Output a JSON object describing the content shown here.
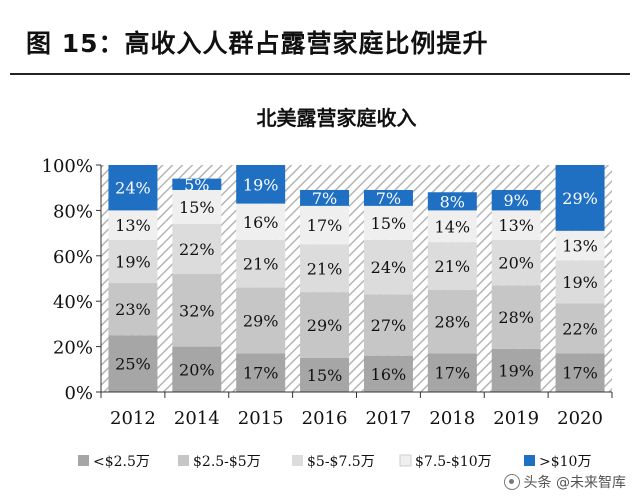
{
  "figure": {
    "title": "图 15：高收入人群占露营家庭比例提升"
  },
  "watermark": "头条 @未来智库",
  "colors": {
    "lt_2_5": "#a6a6a6",
    "2_5_5": "#c6c6c6",
    "5_7_5": "#dcdcdc",
    "7_5_10": "#efefef",
    "gt_10": "#1f6fc2"
  },
  "chart_data": {
    "type": "bar",
    "stacked": true,
    "title": "北美露营家庭收入",
    "categories": [
      "2012",
      "2014",
      "2015",
      "2016",
      "2017",
      "2018",
      "2019",
      "2020"
    ],
    "ylim": [
      0,
      100
    ],
    "yticks": [
      "0%",
      "20%",
      "40%",
      "60%",
      "80%",
      "100%"
    ],
    "grid": false,
    "legend_position": "bottom",
    "series": [
      {
        "name": "<$2.5万",
        "color": "#a6a6a6",
        "values": [
          25,
          20,
          17,
          15,
          16,
          17,
          19,
          17
        ],
        "labels": [
          "25%",
          "20%",
          "17%",
          "15%",
          "16%",
          "17%",
          "19%",
          "17%"
        ]
      },
      {
        "name": "$2.5-$5万",
        "color": "#c6c6c6",
        "values": [
          23,
          32,
          29,
          29,
          27,
          28,
          28,
          22
        ],
        "labels": [
          "23%",
          "32%",
          "29%",
          "29%",
          "27%",
          "28%",
          "28%",
          "22%"
        ]
      },
      {
        "name": "$5-$7.5万",
        "color": "#dcdcdc",
        "values": [
          19,
          22,
          21,
          21,
          24,
          21,
          20,
          19
        ],
        "labels": [
          "19%",
          "22%",
          "21%",
          "21%",
          "24%",
          "21%",
          "20%",
          "19%"
        ]
      },
      {
        "name": "$7.5-$10万",
        "color": "#efefef",
        "values": [
          13,
          15,
          16,
          17,
          15,
          14,
          13,
          13
        ],
        "labels": [
          "13%",
          "15%",
          "16%",
          "17%",
          "15%",
          "14%",
          "13%",
          "13%"
        ]
      },
      {
        "name": ">$10万",
        "color": "#1f6fc2",
        "values": [
          24,
          5,
          19,
          7,
          7,
          8,
          9,
          29
        ],
        "labels": [
          "24%",
          "5%",
          "19%",
          "7%",
          "7%",
          "8%",
          "9%",
          "29%"
        ]
      }
    ]
  }
}
